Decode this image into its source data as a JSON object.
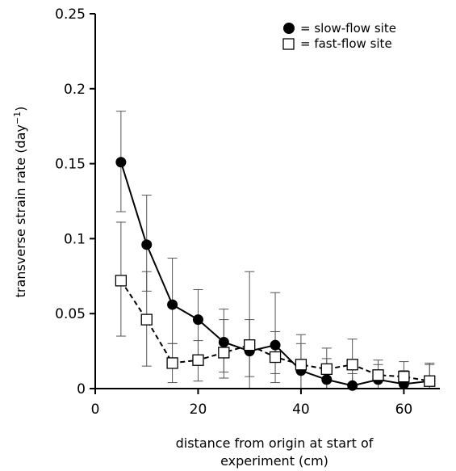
{
  "chart_data": {
    "type": "line",
    "title": "",
    "xlabel_lines": [
      "distance from origin at start of",
      "experiment (cm)"
    ],
    "ylabel": "transverse strain rate (day",
    "ylabel_sup": "−1",
    "ylabel_close": ")",
    "xlim": [
      0,
      67
    ],
    "ylim": [
      0,
      0.25
    ],
    "xticks": [
      0,
      20,
      40,
      60
    ],
    "xtick_labels": [
      "0",
      "20",
      "40",
      "60"
    ],
    "yticks": [
      0,
      0.05,
      0.1,
      0.15,
      0.2,
      0.25
    ],
    "ytick_labels": [
      "0",
      "0.05",
      "0.1",
      "0.15",
      "0.2",
      "0.25"
    ],
    "legend_position": "top-right",
    "series": [
      {
        "name": "= slow-flow site",
        "marker": "filled-circle",
        "line_style": "solid",
        "color": "#000000",
        "x": [
          5,
          10,
          15,
          20,
          25,
          30,
          35,
          40,
          45,
          50,
          55,
          60,
          65
        ],
        "y": [
          0.151,
          0.096,
          0.056,
          0.046,
          0.031,
          0.025,
          0.029,
          0.012,
          0.006,
          0.002,
          0.006,
          0.003,
          0.005
        ],
        "err_low": [
          0.118,
          0.065,
          0.03,
          0.02,
          0.011,
          0.008,
          0.01,
          0.0,
          0.0,
          0.0,
          0.0,
          0.0,
          0.0
        ],
        "err_high": [
          0.185,
          0.129,
          0.087,
          0.066,
          0.053,
          0.046,
          0.064,
          0.036,
          0.02,
          0.01,
          0.016,
          0.012,
          0.016
        ]
      },
      {
        "name": "= fast-flow site",
        "marker": "open-square",
        "line_style": "dashed",
        "color": "#000000",
        "x": [
          5,
          10,
          15,
          20,
          25,
          30,
          35,
          40,
          45,
          50,
          55,
          60,
          65
        ],
        "y": [
          0.072,
          0.046,
          0.017,
          0.019,
          0.024,
          0.029,
          0.021,
          0.016,
          0.013,
          0.016,
          0.009,
          0.008,
          0.005
        ],
        "err_low": [
          0.035,
          0.015,
          0.004,
          0.005,
          0.007,
          0.0,
          0.004,
          0.0,
          0.0,
          0.0,
          0.0,
          0.0,
          0.0
        ],
        "err_high": [
          0.111,
          0.078,
          0.03,
          0.032,
          0.046,
          0.078,
          0.038,
          0.03,
          0.027,
          0.033,
          0.019,
          0.018,
          0.017
        ]
      }
    ]
  }
}
